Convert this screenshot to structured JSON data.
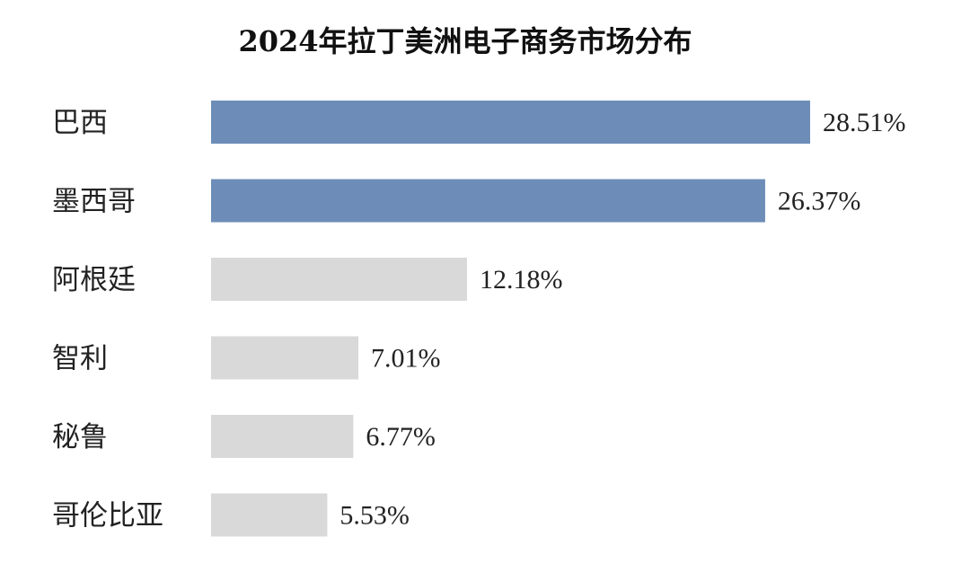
{
  "chart_data": {
    "type": "bar",
    "orientation": "horizontal",
    "title": "2024年拉丁美洲电子商务市场分布",
    "categories": [
      "巴西",
      "墨西哥",
      "阿根廷",
      "智利",
      "秘鲁",
      "哥伦比亚"
    ],
    "values": [
      28.51,
      26.37,
      12.18,
      7.01,
      6.77,
      5.53
    ],
    "value_labels": [
      "28.51%",
      "26.37%",
      "12.18%",
      "7.01%",
      "6.77%",
      "5.53%"
    ],
    "xlabel": "",
    "ylabel": "",
    "grid": false,
    "legend": "none",
    "colors": {
      "highlight": "#6d8db8",
      "default": "#d9d9d9",
      "text": "#222222"
    },
    "highlighted": [
      "巴西",
      "墨西哥"
    ]
  }
}
